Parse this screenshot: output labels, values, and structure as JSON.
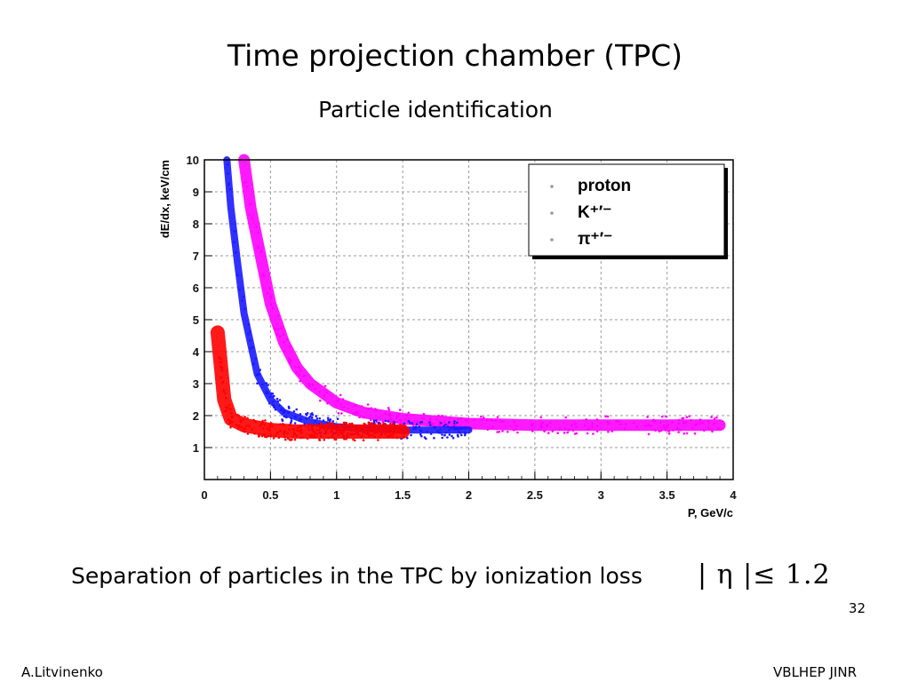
{
  "slide": {
    "title": "Time projection chamber (TPC)",
    "subtitle": "Particle identification",
    "caption": "Separation of particles in the TPC by ionization loss",
    "formula": "| η |≤ 1.2",
    "page_number": "32",
    "footer_left": "A.Litvinenko",
    "footer_right": "VBLHEP JINR"
  },
  "chart_data": {
    "type": "scatter",
    "xlabel": "P, GeV/c",
    "ylabel": "dE/dx, keV/cm",
    "xlim": [
      0,
      4
    ],
    "ylim": [
      0,
      10
    ],
    "x_ticks": [
      "0",
      "0.5",
      "1",
      "1.5",
      "2",
      "2.5",
      "3",
      "3.5",
      "4"
    ],
    "y_ticks": [
      "1",
      "2",
      "3",
      "4",
      "5",
      "6",
      "7",
      "8",
      "9",
      "10"
    ],
    "grid": true,
    "legend_position": "top-right",
    "series": [
      {
        "name": "proton",
        "color": "#ff00ff",
        "x": [
          0.3,
          0.35,
          0.4,
          0.5,
          0.6,
          0.7,
          0.8,
          1.0,
          1.2,
          1.5,
          2.0,
          2.5,
          3.0,
          3.5,
          3.9
        ],
        "y": [
          10,
          8.5,
          7.5,
          5.5,
          4.3,
          3.5,
          3.0,
          2.4,
          2.1,
          1.9,
          1.75,
          1.7,
          1.7,
          1.7,
          1.7
        ]
      },
      {
        "name": "K⁺′⁻",
        "color": "#1a1aff",
        "x": [
          0.17,
          0.2,
          0.25,
          0.3,
          0.4,
          0.5,
          0.6,
          0.8,
          1.0,
          1.2,
          1.5,
          2.0
        ],
        "y": [
          10,
          8.5,
          6.8,
          5.2,
          3.3,
          2.5,
          2.1,
          1.8,
          1.65,
          1.6,
          1.55,
          1.55
        ]
      },
      {
        "name": "π⁺′⁻",
        "color": "#ff0000",
        "x": [
          0.1,
          0.15,
          0.2,
          0.3,
          0.5,
          0.7,
          1.0,
          1.5
        ],
        "y": [
          4.6,
          2.5,
          1.9,
          1.7,
          1.55,
          1.5,
          1.5,
          1.5
        ]
      }
    ]
  }
}
